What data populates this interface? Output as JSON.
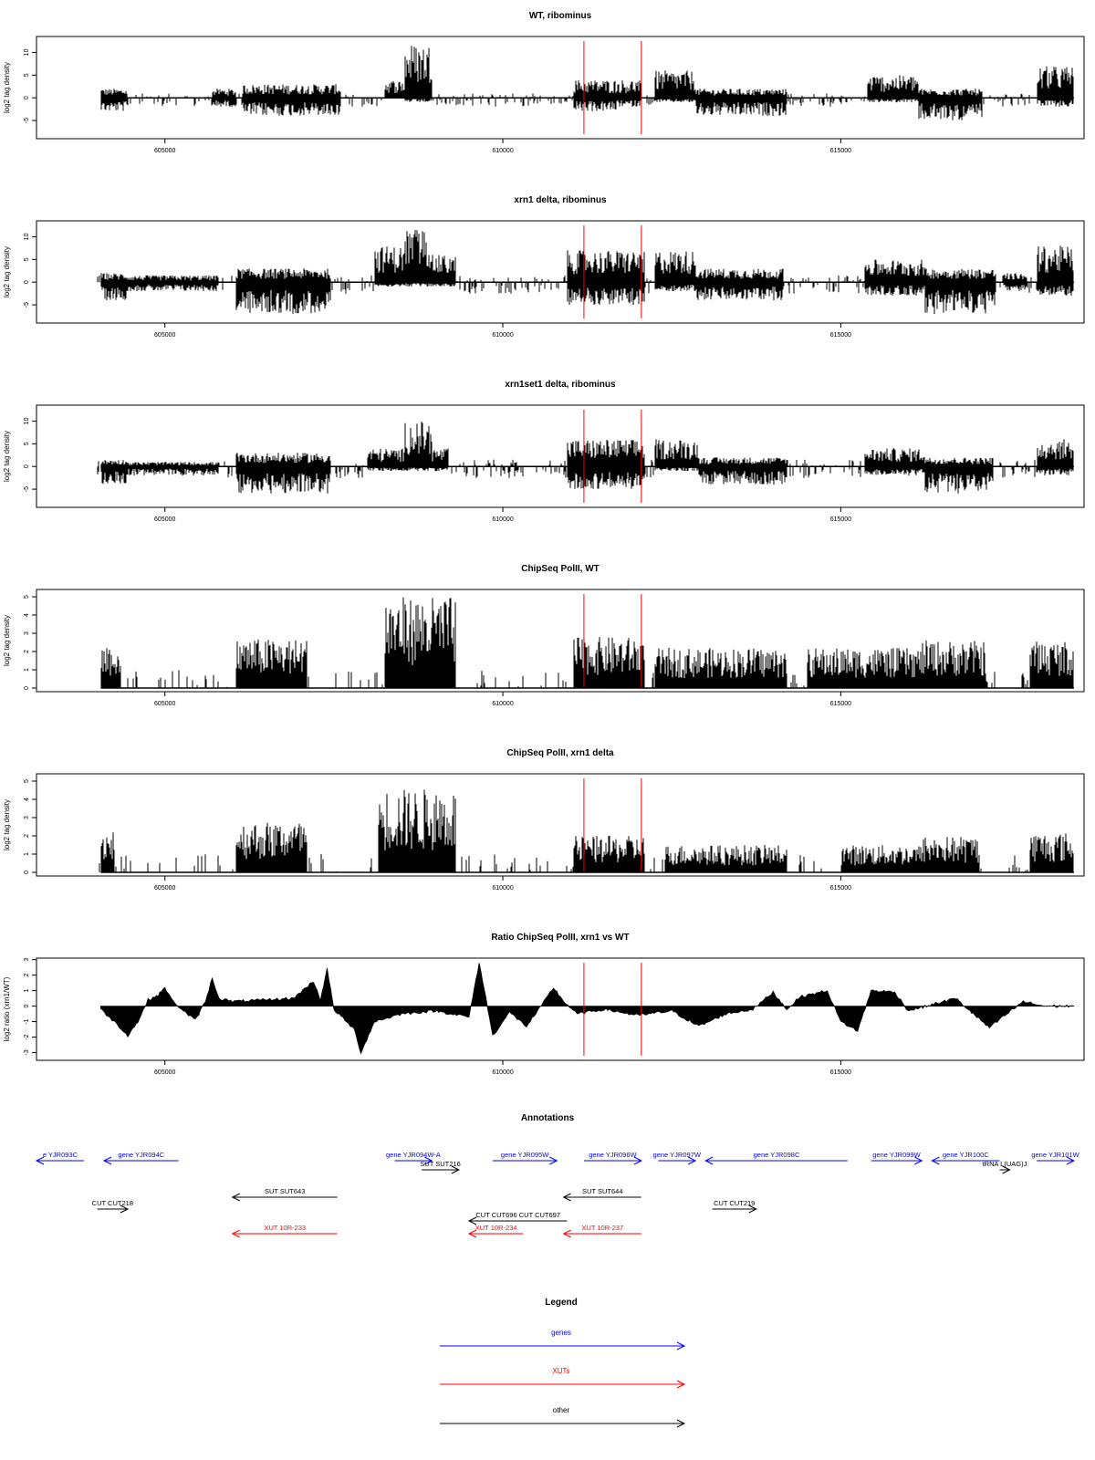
{
  "colors": {
    "line": "#000000",
    "marker": "#ff0000",
    "gene": "#0000ff",
    "xut": "#ff0000",
    "other": "#000000"
  },
  "chart_data": [
    {
      "type": "bar",
      "title": "WT, ribominus",
      "ylabel": "log2 tag density",
      "ylim": [
        -9,
        13.5
      ],
      "yticks": [
        "-5",
        "0",
        "5",
        "10"
      ],
      "xlim": [
        603100,
        618600
      ],
      "xticks": [
        "605000",
        "610000",
        "615000"
      ],
      "markers": [
        611200,
        612050
      ],
      "profile": {
        "segments": [
          [
            604050,
            604450,
            2,
            -3
          ],
          [
            605700,
            606050,
            2,
            -2
          ],
          [
            606150,
            607600,
            3,
            -4
          ],
          [
            608250,
            608550,
            4,
            0
          ],
          [
            608550,
            608950,
            12,
            -1
          ],
          [
            611050,
            611700,
            4,
            -3
          ],
          [
            611700,
            612050,
            4,
            -2
          ],
          [
            612250,
            612850,
            6,
            -1
          ],
          [
            612850,
            614200,
            2,
            -4
          ],
          [
            615400,
            616150,
            5,
            -1
          ],
          [
            616150,
            617100,
            2,
            -5
          ],
          [
            617900,
            618450,
            7,
            -2
          ]
        ],
        "noise": [
          1,
          -1.5
        ]
      }
    },
    {
      "type": "bar",
      "title": "xrn1 delta, ribominus",
      "ylabel": "log2 tag density",
      "ylim": [
        -9,
        13.5
      ],
      "yticks": [
        "-5",
        "0",
        "5",
        "10"
      ],
      "xlim": [
        603100,
        618600
      ],
      "xticks": [
        "605000",
        "610000",
        "615000"
      ],
      "markers": [
        611200,
        612050
      ],
      "profile": {
        "segments": [
          [
            604050,
            604450,
            2,
            -4
          ],
          [
            604450,
            605800,
            1.5,
            -2
          ],
          [
            606050,
            607450,
            3,
            -7
          ],
          [
            608100,
            608550,
            8,
            -1
          ],
          [
            608550,
            608950,
            12,
            -1
          ],
          [
            608950,
            609300,
            6,
            -1
          ],
          [
            610950,
            612100,
            7,
            -5
          ],
          [
            612250,
            612850,
            7,
            -2
          ],
          [
            612850,
            614150,
            3,
            -4
          ],
          [
            615350,
            616250,
            5,
            -3
          ],
          [
            616250,
            617300,
            3,
            -7
          ],
          [
            617400,
            617750,
            2,
            -2
          ],
          [
            617900,
            618450,
            8,
            -3
          ]
        ],
        "noise": [
          1.5,
          -2
        ]
      }
    },
    {
      "type": "bar",
      "title": "xrn1set1 delta, ribominus",
      "ylabel": "log2 tag density",
      "ylim": [
        -9,
        13.5
      ],
      "yticks": [
        "-5",
        "0",
        "5",
        "10"
      ],
      "xlim": [
        603100,
        618600
      ],
      "xticks": [
        "605000",
        "610000",
        "615000"
      ],
      "markers": [
        611200,
        612050
      ],
      "profile": {
        "segments": [
          [
            604050,
            604450,
            1.5,
            -4
          ],
          [
            604450,
            605800,
            1,
            -2
          ],
          [
            606050,
            607450,
            3,
            -6
          ],
          [
            608000,
            608550,
            4,
            -1
          ],
          [
            608550,
            608950,
            10,
            -1
          ],
          [
            608950,
            609200,
            4,
            -1
          ],
          [
            610950,
            612100,
            6,
            -5
          ],
          [
            612250,
            612900,
            6,
            -1
          ],
          [
            612900,
            614200,
            2,
            -4
          ],
          [
            615350,
            616250,
            4,
            -2
          ],
          [
            616250,
            617250,
            2,
            -6
          ],
          [
            617900,
            618450,
            6,
            -2
          ]
        ],
        "noise": [
          1.5,
          -2
        ]
      }
    },
    {
      "type": "bar",
      "title": "ChipSeq PolII, WT",
      "ylabel": "log2 tag density",
      "ylim": [
        -0.2,
        5.4
      ],
      "yticks": [
        "0",
        "1",
        "2",
        "3",
        "4",
        "5"
      ],
      "xlim": [
        603100,
        618600
      ],
      "xticks": [
        "605000",
        "610000",
        "615000"
      ],
      "markers": [
        611200,
        612050
      ],
      "profile": {
        "segments": [
          [
            604050,
            604350,
            2.5,
            0
          ],
          [
            606050,
            607100,
            2.7,
            0
          ],
          [
            608250,
            609300,
            5,
            0
          ],
          [
            611050,
            612100,
            2.8,
            0
          ],
          [
            612250,
            614200,
            2.2,
            0
          ],
          [
            614500,
            616200,
            2.2,
            0
          ],
          [
            616200,
            617150,
            2.6,
            0
          ],
          [
            617800,
            618450,
            2.6,
            0
          ]
        ],
        "noise": [
          1,
          0
        ]
      }
    },
    {
      "type": "bar",
      "title": "ChipSeq PolII, xrn1 delta",
      "ylabel": "log2 tag density",
      "ylim": [
        -0.2,
        5.4
      ],
      "yticks": [
        "0",
        "1",
        "2",
        "3",
        "4",
        "5"
      ],
      "xlim": [
        603100,
        618600
      ],
      "xticks": [
        "605000",
        "610000",
        "615000"
      ],
      "markers": [
        611200,
        612050
      ],
      "profile": {
        "segments": [
          [
            604050,
            604250,
            2.4,
            0
          ],
          [
            606050,
            607100,
            2.8,
            0
          ],
          [
            608150,
            609300,
            4.6,
            0
          ],
          [
            611050,
            612100,
            2,
            0
          ],
          [
            612400,
            613200,
            1.5,
            0
          ],
          [
            613200,
            614200,
            1.5,
            0
          ],
          [
            615000,
            616200,
            1.5,
            0
          ],
          [
            616200,
            617050,
            2,
            0
          ],
          [
            617800,
            618450,
            2.2,
            0
          ]
        ],
        "noise": [
          1,
          0
        ]
      }
    },
    {
      "type": "area",
      "title": "Ratio ChipSeq PolII, xrn1 vs WT",
      "ylabel": "log2 ratio (xrn1/WT)",
      "ylim": [
        -3.5,
        3.1
      ],
      "yticks": [
        "-3",
        "-2",
        "-1",
        "0",
        "1",
        "2",
        "3"
      ],
      "xlim": [
        603100,
        618600
      ],
      "xticks": [
        "605000",
        "610000",
        "615000"
      ],
      "markers": [
        611200,
        612050
      ],
      "curve": [
        [
          604050,
          -0.2
        ],
        [
          604300,
          -1.2
        ],
        [
          604450,
          -1.9
        ],
        [
          604600,
          -1.0
        ],
        [
          604750,
          0.4
        ],
        [
          604900,
          0.7
        ],
        [
          605000,
          1.2
        ],
        [
          605100,
          0.4
        ],
        [
          605300,
          -0.4
        ],
        [
          605450,
          -0.9
        ],
        [
          605600,
          0.3
        ],
        [
          605700,
          1.8
        ],
        [
          605800,
          0.5
        ],
        [
          606000,
          0.3
        ],
        [
          606500,
          0.4
        ],
        [
          606900,
          0.5
        ],
        [
          607200,
          1.6
        ],
        [
          607300,
          0.4
        ],
        [
          607400,
          2.4
        ],
        [
          607500,
          -0.2
        ],
        [
          607800,
          -1.5
        ],
        [
          607900,
          -3.0
        ],
        [
          608100,
          -1.0
        ],
        [
          608500,
          -0.5
        ],
        [
          609000,
          -0.3
        ],
        [
          609500,
          -0.7
        ],
        [
          609650,
          2.8
        ],
        [
          609750,
          0.5
        ],
        [
          609850,
          -1.9
        ],
        [
          610100,
          -0.4
        ],
        [
          610350,
          -1.3
        ],
        [
          610600,
          0.2
        ],
        [
          610750,
          1.2
        ],
        [
          610900,
          0.3
        ],
        [
          611100,
          -0.5
        ],
        [
          611500,
          -0.2
        ],
        [
          612000,
          -0.6
        ],
        [
          612500,
          -0.3
        ],
        [
          612900,
          -1.3
        ],
        [
          613300,
          -0.5
        ],
        [
          613700,
          -0.2
        ],
        [
          614000,
          0.9
        ],
        [
          614200,
          -0.2
        ],
        [
          614400,
          0.6
        ],
        [
          614800,
          1.0
        ],
        [
          615000,
          -1.0
        ],
        [
          615250,
          -1.6
        ],
        [
          615450,
          1.0
        ],
        [
          615800,
          0.9
        ],
        [
          616000,
          -0.3
        ],
        [
          616700,
          0.5
        ],
        [
          617200,
          -1.4
        ],
        [
          617400,
          -0.7
        ],
        [
          617700,
          0.3
        ],
        [
          618000,
          0.0
        ],
        [
          618450,
          0.0
        ]
      ]
    }
  ],
  "annotations": {
    "title": "Annotations",
    "rows": [
      [
        {
          "label": "e YJR093C",
          "type": "gene",
          "start": 603100,
          "end": 603800,
          "dir": "rev"
        },
        {
          "label": "gene YJR094C",
          "type": "gene",
          "start": 604100,
          "end": 605200,
          "dir": "rev"
        },
        {
          "label": "gene YJR094W-A",
          "type": "gene",
          "start": 608400,
          "end": 608950,
          "dir": "fwd"
        },
        {
          "label": "gene YJR095W",
          "type": "gene",
          "start": 609850,
          "end": 610800,
          "dir": "fwd"
        },
        {
          "label": "gene YJR096W",
          "type": "gene",
          "start": 611200,
          "end": 612050,
          "dir": "fwd"
        },
        {
          "label": "gene YJR097W",
          "type": "gene",
          "start": 612300,
          "end": 612850,
          "dir": "fwd"
        },
        {
          "label": "gene YJR098C",
          "type": "gene",
          "start": 613000,
          "end": 615100,
          "dir": "rev"
        },
        {
          "label": "gene YJR099W",
          "type": "gene",
          "start": 615450,
          "end": 616200,
          "dir": "fwd"
        },
        {
          "label": "gene YJR100C",
          "type": "gene",
          "start": 616350,
          "end": 617350,
          "dir": "rev"
        },
        {
          "label": "gene YJR101W",
          "type": "gene",
          "start": 617900,
          "end": 618450,
          "dir": "fwd"
        }
      ],
      [
        {
          "label": "tRNA L(UAG)J",
          "type": "other",
          "start": 617350,
          "end": 617500,
          "dir": "fwd"
        },
        {
          "label": "SUT SUT216",
          "type": "other",
          "start": 608800,
          "end": 609350,
          "dir": "fwd"
        }
      ],
      [
        {
          "label": "SUT SUT643",
          "type": "other",
          "start": 606000,
          "end": 607550,
          "dir": "rev"
        },
        {
          "label": "SUT SUT644",
          "type": "other",
          "start": 610900,
          "end": 612050,
          "dir": "rev"
        }
      ],
      [
        {
          "label": "CUT CUT218",
          "type": "other",
          "start": 604000,
          "end": 604450,
          "dir": "fwd"
        },
        {
          "label": "CUT CUT219",
          "type": "other",
          "start": 613100,
          "end": 613750,
          "dir": "fwd"
        }
      ],
      [
        {
          "label": "CUT CUT696 CUT CUT697",
          "type": "other",
          "start": 609500,
          "end": 610950,
          "dir": "rev"
        }
      ],
      [
        {
          "label": "XUT 10R-233",
          "type": "xut",
          "start": 606000,
          "end": 607550,
          "dir": "rev"
        },
        {
          "label": "XUT 10R-234",
          "type": "xut",
          "start": 609500,
          "end": 610300,
          "dir": "rev"
        },
        {
          "label": "XUT 10R-237",
          "type": "xut",
          "start": 610900,
          "end": 612050,
          "dir": "rev"
        }
      ]
    ]
  },
  "legend": {
    "title": "Legend",
    "items": [
      {
        "label": "genes",
        "type": "gene"
      },
      {
        "label": "XUTs",
        "type": "xut"
      },
      {
        "label": "other",
        "type": "other"
      }
    ]
  }
}
